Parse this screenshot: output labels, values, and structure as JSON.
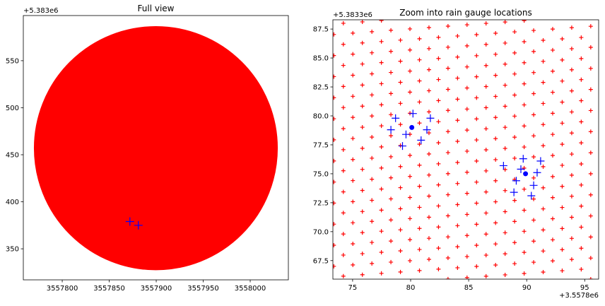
{
  "chart_data": [
    {
      "type": "scatter",
      "title": "Full view",
      "y_offset": "+5.383e6",
      "xlim": [
        3557758.6,
        3558040.6
      ],
      "ylim": [
        317,
        598
      ],
      "xticks": [
        3557800,
        3557850,
        3557900,
        3557950,
        3558000
      ],
      "yticks": [
        350,
        400,
        450,
        500,
        550
      ],
      "series": [
        {
          "marker": "+",
          "color": "#ff0000",
          "disk": {
            "cx": 3557899.6,
            "cy": 457,
            "r": 129
          }
        },
        {
          "marker": "+",
          "color": "#0000ff",
          "x": [
            3557872,
            3557881
          ],
          "y": [
            379,
            375
          ]
        }
      ]
    },
    {
      "type": "scatter",
      "title": "Zoom into rain gauge locations",
      "x_offset": "+3.5578e6",
      "y_offset": "+5.3833e6",
      "xlim": [
        73.3,
        96.2
      ],
      "ylim": [
        65.9,
        88.3
      ],
      "xticks": [
        75,
        80,
        85,
        90,
        95
      ],
      "yticks": [
        67.5,
        {
          "value": 70,
          "label": "70.0"
        },
        72.5,
        {
          "value": 75,
          "label": "75.0"
        },
        77.5,
        {
          "value": 80,
          "label": "80.0"
        },
        82.5,
        {
          "value": 85,
          "label": "85.0"
        },
        87.5
      ],
      "series": [
        {
          "marker": "+",
          "color": "#ff0000",
          "lattice": {
            "x0": 74.2,
            "y0": 88.0,
            "ax": 1.64,
            "ay": 0.12,
            "bx": 0.82,
            "by": -0.85
          }
        },
        {
          "marker": "+",
          "color": "#0000ff",
          "x": [
            78.3,
            78.7,
            79.3,
            79.6,
            80.2,
            80.9,
            81.4,
            81.7,
            88.0,
            88.9,
            89.1,
            89.5,
            89.7,
            90.4,
            90.6,
            90.9,
            91.2
          ],
          "y": [
            78.8,
            79.8,
            77.4,
            78.4,
            80.2,
            77.9,
            78.8,
            79.8,
            75.7,
            73.4,
            74.4,
            75.4,
            76.3,
            73.1,
            74.0,
            75.1,
            76.1
          ]
        },
        {
          "marker": "o",
          "color": "#0000ff",
          "x": [
            80.1,
            89.9
          ],
          "y": [
            79.0,
            75.0
          ]
        }
      ]
    }
  ]
}
